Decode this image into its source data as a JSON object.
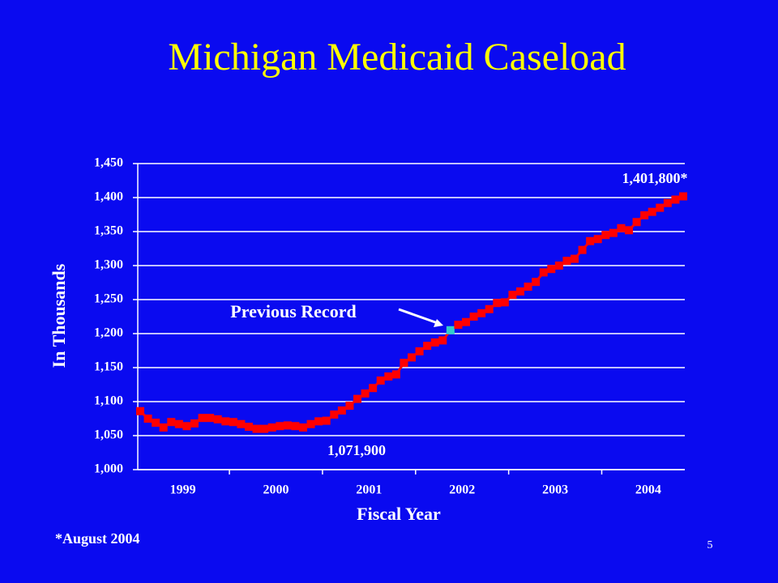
{
  "chart_data": {
    "type": "line",
    "title": "Michigan Medicaid Caseload",
    "xlabel": "Fiscal Year",
    "ylabel": "In Thousands",
    "categories": [
      null,
      null,
      null,
      null,
      null,
      "1999",
      null,
      null,
      null,
      null,
      null,
      null,
      null,
      null,
      null,
      null,
      null,
      "2000",
      null,
      null,
      null,
      null,
      null,
      null,
      null,
      null,
      null,
      null,
      null,
      "2001",
      null,
      null,
      null,
      null,
      null,
      null,
      null,
      null,
      null,
      null,
      null,
      "2002",
      null,
      null,
      null,
      null,
      null,
      null,
      null,
      null,
      null,
      null,
      null,
      "2003",
      null,
      null,
      null,
      null,
      null,
      null,
      null,
      null,
      null,
      null,
      null,
      "2004",
      null,
      null,
      null,
      null,
      null
    ],
    "series": [
      {
        "name": "Caseload",
        "color": "#ff0000",
        "values": [
          1086,
          1075,
          1069,
          1062,
          1070,
          1067,
          1064,
          1068,
          1076,
          1076,
          1074,
          1071,
          1070,
          1067,
          1063,
          1060,
          1060,
          1062,
          1064,
          1065,
          1064,
          1062,
          1067,
          1071,
          1071.9,
          1081,
          1087,
          1094,
          1104,
          1112,
          1120,
          1131,
          1137,
          1140,
          1157,
          1165,
          1174,
          1182,
          1187,
          1190,
          1205,
          1213,
          1217,
          1225,
          1230,
          1236,
          1245,
          1246,
          1257,
          1262,
          1269,
          1276,
          1290,
          1295,
          1300,
          1307,
          1310,
          1323,
          1336,
          1339,
          1345,
          1348,
          1355,
          1352,
          1364,
          1374,
          1379,
          1385,
          1392,
          1397,
          1401.8
        ]
      }
    ],
    "highlight_index": 40,
    "highlight_color": "#33cccc",
    "ylim": [
      1000,
      1450
    ],
    "yticks": [
      {
        "value": 1000,
        "label": "1,000"
      },
      {
        "value": 1050,
        "label": "1,050"
      },
      {
        "value": 1100,
        "label": "1,100"
      },
      {
        "value": 1150,
        "label": "1,150"
      },
      {
        "value": 1200,
        "label": "1,200"
      },
      {
        "value": 1250,
        "label": "1,250"
      },
      {
        "value": 1300,
        "label": "1,300"
      },
      {
        "value": 1350,
        "label": "1,350"
      },
      {
        "value": 1400,
        "label": "1,400"
      },
      {
        "value": 1450,
        "label": "1,450"
      }
    ],
    "grid": true,
    "annotations": {
      "previous_record": "Previous Record",
      "latest": "1,401,800*",
      "low": "1,071,900"
    },
    "footnote": "*August 2004",
    "page_number": "5"
  }
}
